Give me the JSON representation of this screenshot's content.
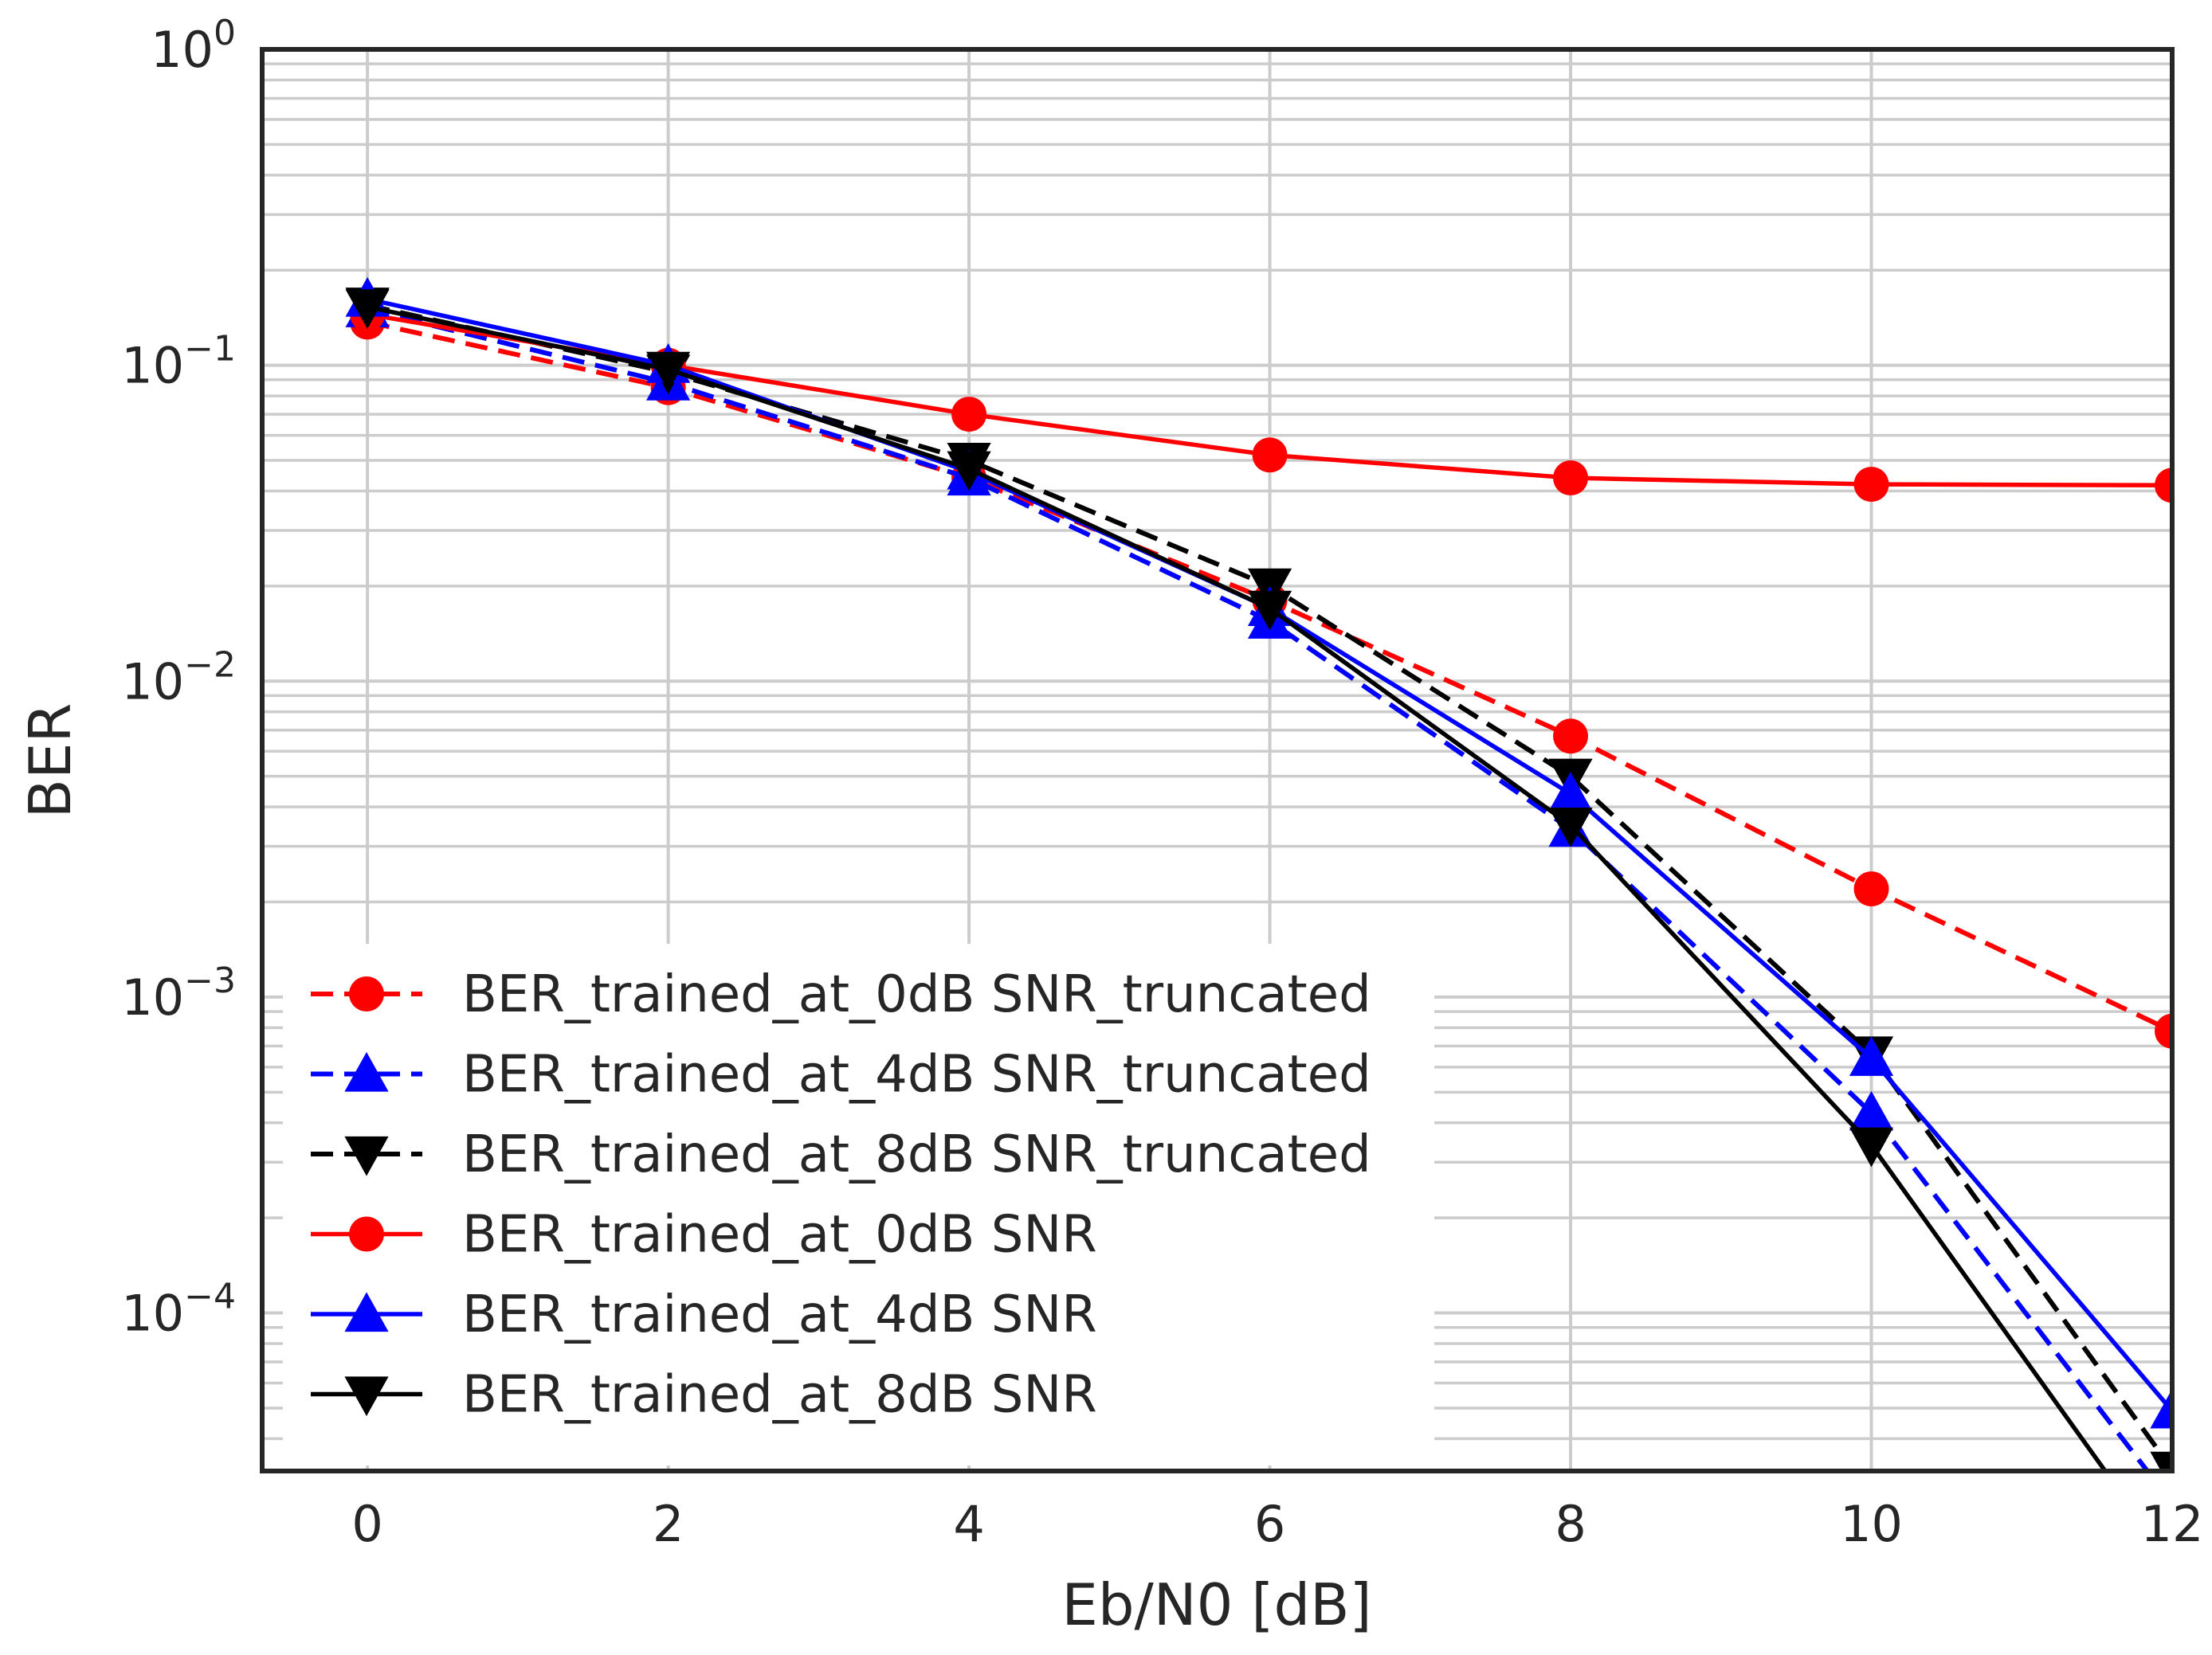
{
  "chart_data": {
    "type": "line",
    "title": "",
    "xlabel": "Eb/N0 [dB]",
    "ylabel": "BER",
    "yscale": "log",
    "xlim": [
      -0.7,
      12
    ],
    "ylim": [
      3.16e-05,
      1
    ],
    "grid": true,
    "legend_placement": "lower-left",
    "x_ticks": [
      0,
      2,
      4,
      6,
      8,
      10,
      12
    ],
    "y_ticks": [
      {
        "base": "10",
        "exp": "0",
        "value": 1
      },
      {
        "base": "10",
        "exp": "−1",
        "value": 0.1
      },
      {
        "base": "10",
        "exp": "−2",
        "value": 0.01
      },
      {
        "base": "10",
        "exp": "−3",
        "value": 0.001
      },
      {
        "base": "10",
        "exp": "−4",
        "value": 0.0001
      }
    ],
    "x": [
      0,
      2,
      4,
      6,
      8,
      10,
      12
    ],
    "series": [
      {
        "name": "BER_trained_at_0dB SNR_truncated",
        "color": "#ff0000",
        "dash": true,
        "marker": "circle",
        "values": [
          0.137,
          0.085,
          0.044,
          0.018,
          0.0067,
          0.0022,
          0.00078
        ]
      },
      {
        "name": "BER_trained_at_4dB SNR_truncated",
        "color": "#0000ff",
        "dash": true,
        "marker": "triangle-up",
        "values": [
          0.15,
          0.088,
          0.044,
          0.0155,
          0.0034,
          0.00043,
          2.5e-05
        ]
      },
      {
        "name": "BER_trained_at_8dB SNR_truncated",
        "color": "#000000",
        "dash": true,
        "marker": "triangle-down",
        "values": [
          0.155,
          0.095,
          0.05,
          0.02,
          0.005,
          0.00066,
          3.2e-05
        ]
      },
      {
        "name": "BER_trained_at_0dB SNR",
        "color": "#ff0000",
        "dash": false,
        "marker": "circle",
        "values": [
          0.145,
          0.1,
          0.07,
          0.052,
          0.044,
          0.042,
          0.0417
        ]
      },
      {
        "name": "BER_trained_at_4dB SNR",
        "color": "#0000ff",
        "dash": false,
        "marker": "triangle-up",
        "values": [
          0.162,
          0.1,
          0.046,
          0.017,
          0.0044,
          0.00064,
          4.9e-05
        ]
      },
      {
        "name": "BER_trained_at_8dB SNR",
        "color": "#000000",
        "dash": false,
        "marker": "triangle-down",
        "values": [
          0.153,
          0.097,
          0.047,
          0.017,
          0.0035,
          0.00034,
          1.6e-05
        ]
      }
    ]
  }
}
